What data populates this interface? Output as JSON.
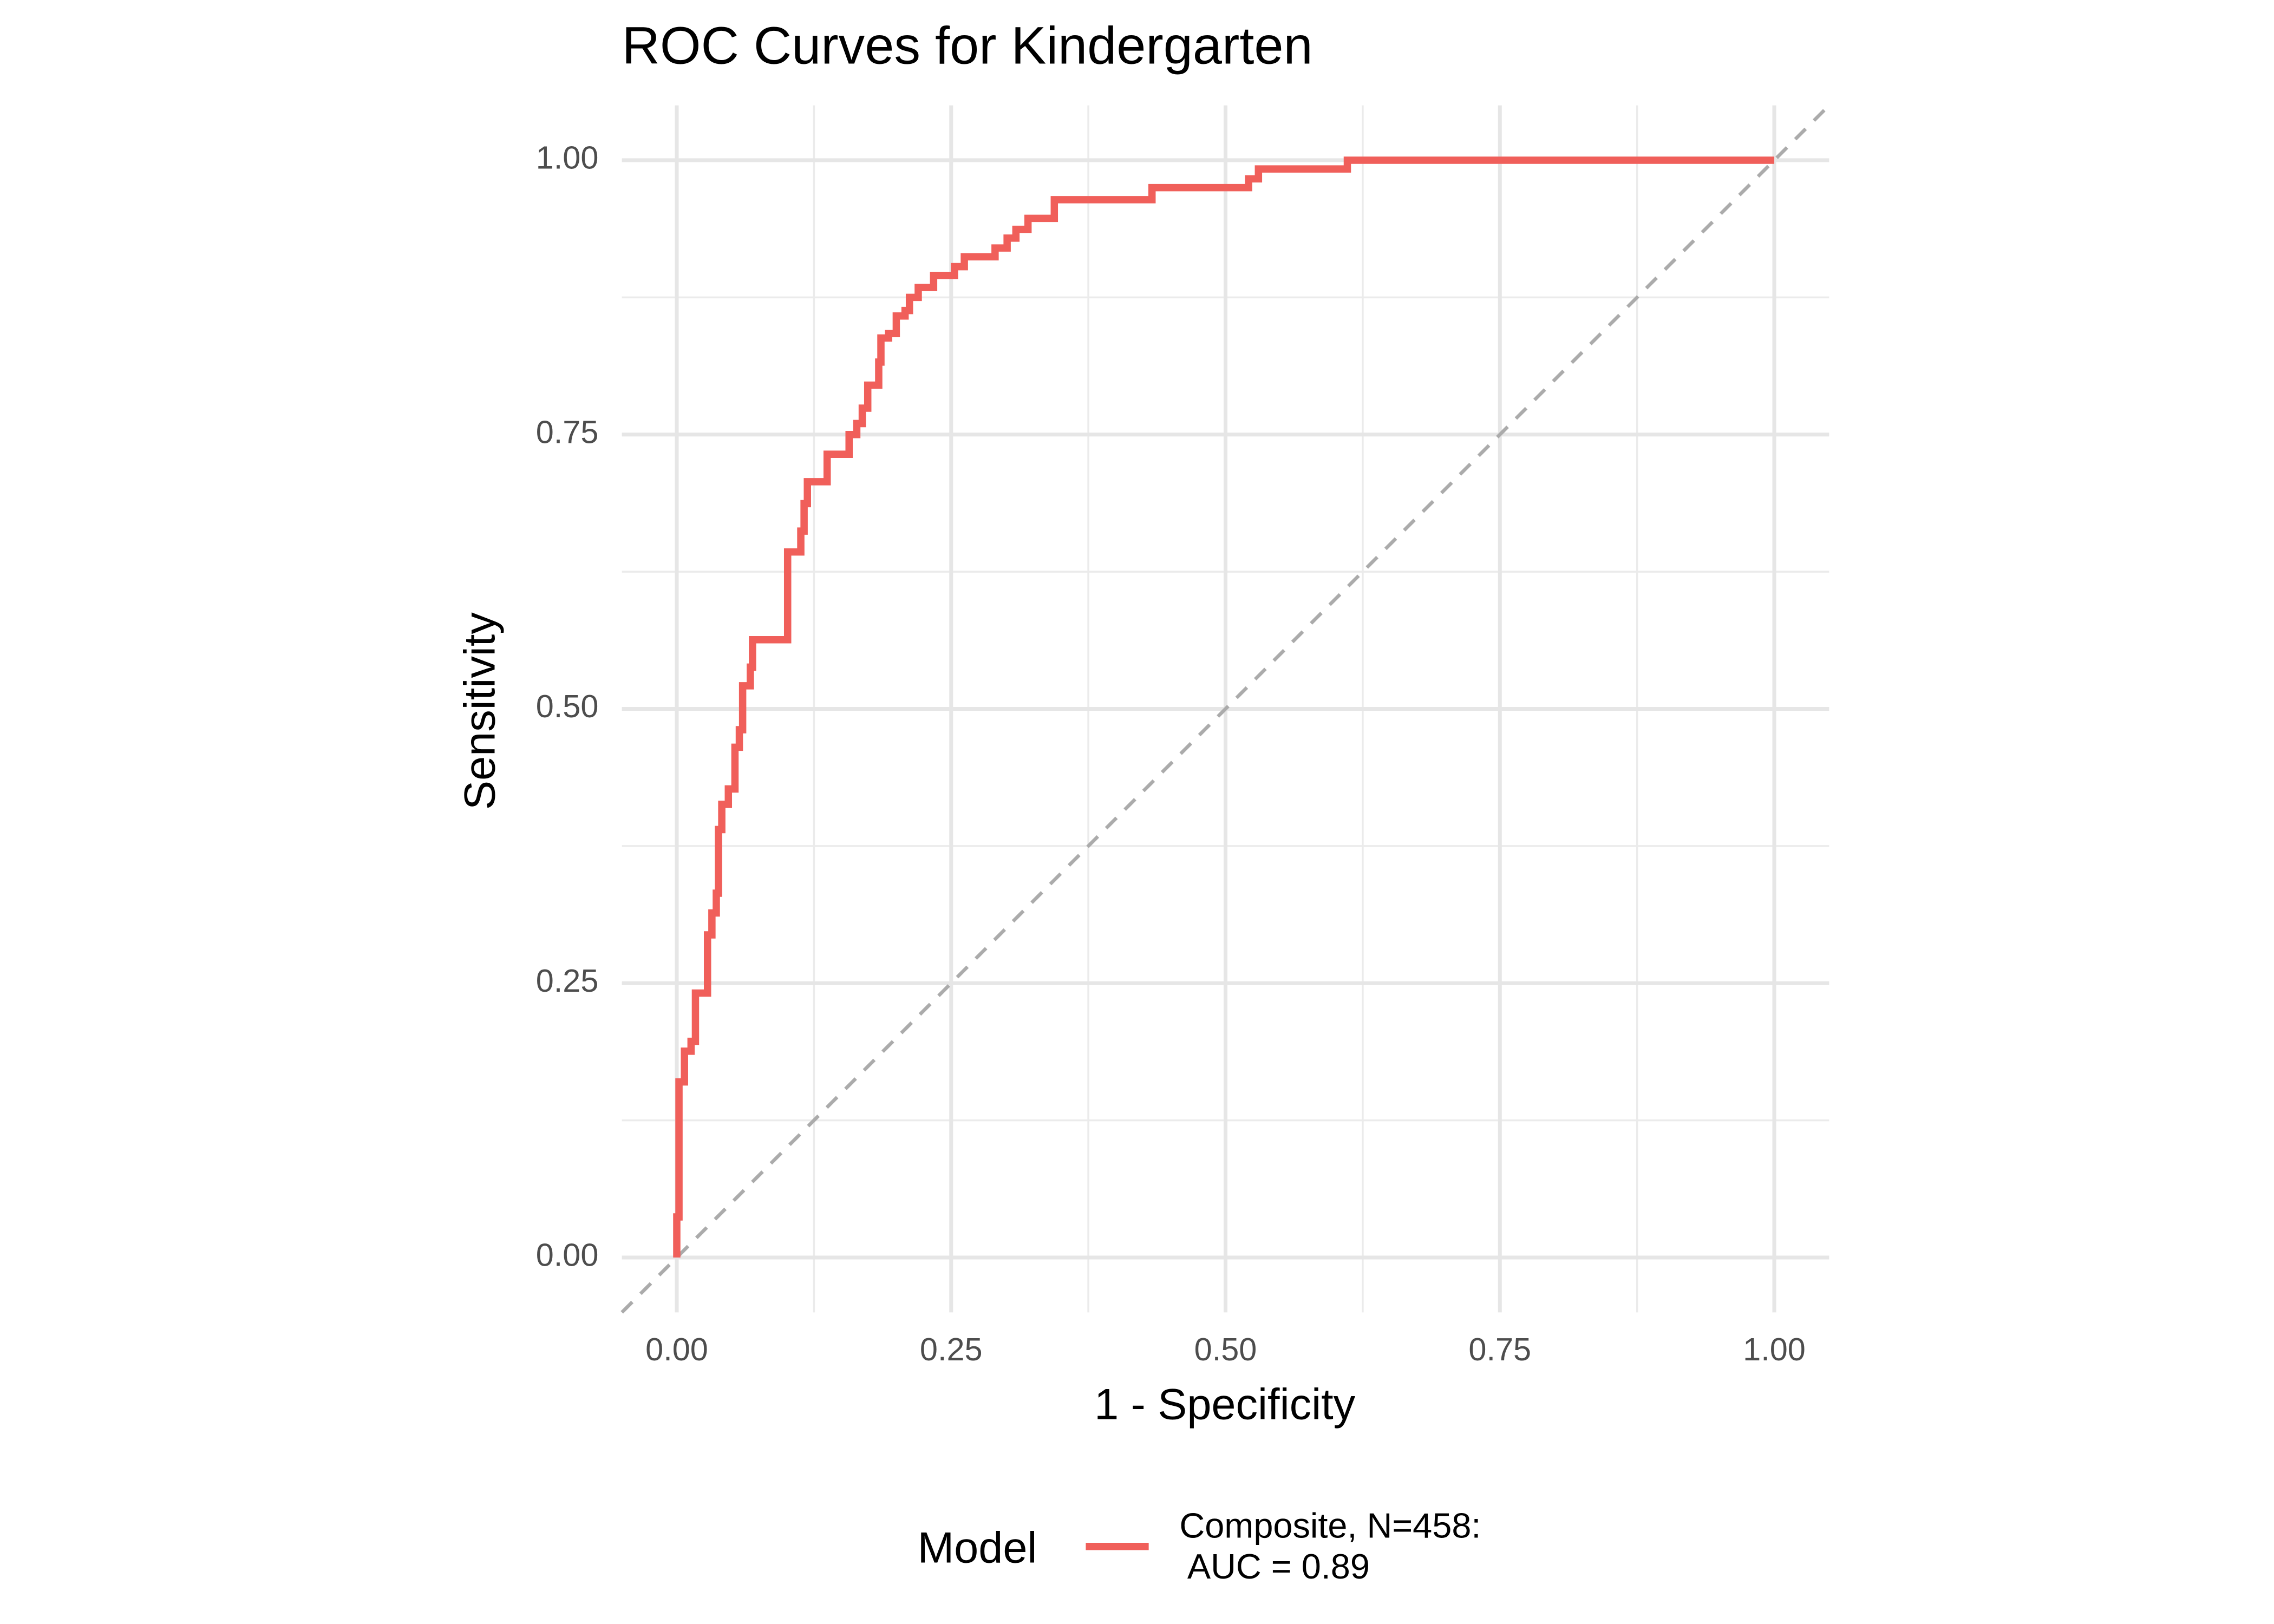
{
  "chart_data": {
    "type": "line",
    "title": "ROC Curves for Kindergarten",
    "xlabel": "1 - Specificity",
    "ylabel": "Sensitivity",
    "legend_title": "Model",
    "legend_position": "bottom",
    "grid": true,
    "xlim": [
      -0.05,
      1.05
    ],
    "ylim": [
      -0.05,
      1.05
    ],
    "xticks": [
      {
        "value": 0,
        "label": "0.00"
      },
      {
        "value": 0.25,
        "label": "0.25"
      },
      {
        "value": 0.5,
        "label": "0.50"
      },
      {
        "value": 0.75,
        "label": "0.75"
      },
      {
        "value": 1,
        "label": "1.00"
      }
    ],
    "yticks": [
      {
        "value": 0,
        "label": "0.00"
      },
      {
        "value": 0.25,
        "label": "0.25"
      },
      {
        "value": 0.5,
        "label": "0.50"
      },
      {
        "value": 0.75,
        "label": "0.75"
      },
      {
        "value": 1,
        "label": "1.00"
      }
    ],
    "minor_xticks": [
      0.125,
      0.375,
      0.625,
      0.875
    ],
    "minor_yticks": [
      0.125,
      0.375,
      0.625,
      0.875
    ],
    "reference_line": true,
    "series": [
      {
        "name": "Composite, N=458:\n AUC = 0.89",
        "color": "#f05f5a",
        "x": [
          0,
          0,
          0.002,
          0.002,
          0.007,
          0.007,
          0.013,
          0.013,
          0.017,
          0.017,
          0.028,
          0.028,
          0.032,
          0.032,
          0.036,
          0.036,
          0.038,
          0.038,
          0.041,
          0.041,
          0.047,
          0.047,
          0.053,
          0.053,
          0.057,
          0.057,
          0.06,
          0.06,
          0.067,
          0.067,
          0.069,
          0.069,
          0.101,
          0.101,
          0.113,
          0.113,
          0.116,
          0.116,
          0.119,
          0.119,
          0.137,
          0.137,
          0.157,
          0.157,
          0.164,
          0.164,
          0.169,
          0.169,
          0.174,
          0.174,
          0.184,
          0.184,
          0.186,
          0.186,
          0.193,
          0.193,
          0.2,
          0.2,
          0.208,
          0.208,
          0.212,
          0.212,
          0.22,
          0.22,
          0.234,
          0.234,
          0.253,
          0.253,
          0.262,
          0.262,
          0.29,
          0.29,
          0.301,
          0.301,
          0.309,
          0.309,
          0.32,
          0.32,
          0.344,
          0.344,
          0.433,
          0.433,
          0.521,
          0.521,
          0.53,
          0.53,
          0.611,
          0.611,
          1
        ],
        "values": [
          0,
          0.037,
          0.037,
          0.16,
          0.16,
          0.188,
          0.188,
          0.197,
          0.197,
          0.241,
          0.241,
          0.294,
          0.294,
          0.314,
          0.314,
          0.332,
          0.332,
          0.39,
          0.39,
          0.413,
          0.413,
          0.427,
          0.427,
          0.465,
          0.465,
          0.481,
          0.481,
          0.521,
          0.521,
          0.538,
          0.538,
          0.563,
          0.563,
          0.643,
          0.643,
          0.662,
          0.662,
          0.687,
          0.687,
          0.707,
          0.707,
          0.732,
          0.732,
          0.75,
          0.75,
          0.76,
          0.76,
          0.774,
          0.774,
          0.795,
          0.795,
          0.816,
          0.816,
          0.838,
          0.838,
          0.842,
          0.842,
          0.858,
          0.858,
          0.863,
          0.863,
          0.875,
          0.875,
          0.884,
          0.884,
          0.895,
          0.895,
          0.903,
          0.903,
          0.912,
          0.912,
          0.92,
          0.92,
          0.929,
          0.929,
          0.937,
          0.937,
          0.947,
          0.947,
          0.964,
          0.964,
          0.975,
          0.975,
          0.983,
          0.983,
          0.992,
          0.992,
          1,
          1
        ]
      }
    ]
  }
}
